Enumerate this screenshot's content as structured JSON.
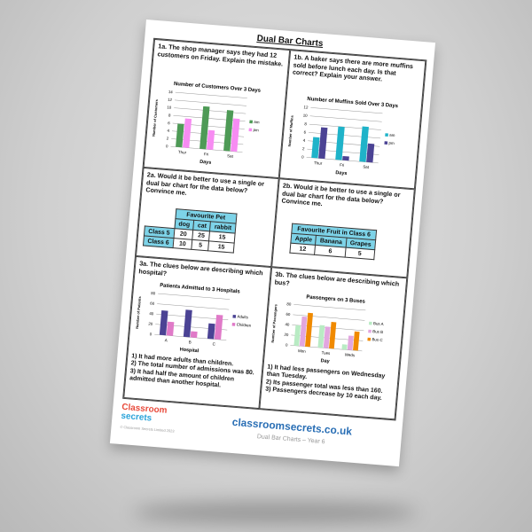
{
  "worksheet": {
    "title": "Dual Bar Charts",
    "q1a": "1a. The shop manager says they had 12 customers on Friday. Explain the mistake.",
    "q1b": "1b. A baker says there are more muffins sold before lunch each day. Is that correct? Explain your answer.",
    "q2a": "2a. Would it be better to use a single or dual bar chart for the data below? Convince me.",
    "q2b": "2b. Would it be better to use a single or dual bar chart for the data below? Convince me.",
    "q3a": "3a. The clues below are describing which hospital?",
    "q3b": "3b. The clues below are describing which bus?",
    "table_pet": {
      "header": "Favourite Pet",
      "cols": [
        "dog",
        "cat",
        "rabbit"
      ],
      "rows": [
        {
          "label": "Class 5",
          "values": [
            "20",
            "25",
            "15"
          ]
        },
        {
          "label": "Class 6",
          "values": [
            "10",
            "5",
            "15"
          ]
        }
      ]
    },
    "table_fruit": {
      "header": "Favourite Fruit in Class 6",
      "cols": [
        "Apple",
        "Banana",
        "Grapes"
      ],
      "values": [
        "12",
        "6",
        "5"
      ]
    },
    "clues3a": [
      "1) It had more adults than children.",
      "2) The total number of admissions was 80.",
      "3) It had half the amount of children admitted than another hospital."
    ],
    "clues3b": [
      "1) It had less passengers on Wednesday than Tuesday.",
      "2) Its passenger total was less than 160.",
      "3) Passengers decrease by 10 each day."
    ],
    "footer": {
      "logo_line1": "Classroom",
      "logo_line2": "secrets",
      "copyright": "© Classroom Secrets Limited 2023",
      "url": "classroomsecrets.co.uk",
      "subtitle": "Dual Bar Charts – Year 6"
    }
  },
  "chart_data": [
    {
      "type": "bar",
      "title": "Number of Customers Over 3 Days",
      "xlabel": "Days",
      "ylabel": "Number of Customers",
      "categories": [
        "Thur",
        "Fri",
        "Sat"
      ],
      "ylim": [
        0,
        14
      ],
      "yticks": [
        0,
        2,
        4,
        6,
        8,
        10,
        12,
        14
      ],
      "grid": true,
      "legend": "right",
      "series": [
        {
          "name": "am",
          "color": "#4e9a56",
          "values": [
            6,
            11,
            10.5
          ]
        },
        {
          "name": "pm",
          "color": "#f78cf2",
          "values": [
            7.5,
            5,
            8.5
          ]
        }
      ]
    },
    {
      "type": "bar",
      "title": "Number of Muffins Sold Over 3 Days",
      "xlabel": "Days",
      "ylabel": "Number of Muffins",
      "categories": [
        "Thur",
        "Fri",
        "Sat"
      ],
      "ylim": [
        0,
        12
      ],
      "yticks": [
        0,
        2,
        4,
        6,
        8,
        10,
        12
      ],
      "grid": true,
      "legend": "right",
      "series": [
        {
          "name": "am",
          "color": "#1fb3c9",
          "values": [
            5,
            8,
            8.5
          ]
        },
        {
          "name": "pm",
          "color": "#4b4394",
          "values": [
            7.5,
            1,
            4.5
          ]
        }
      ]
    },
    {
      "type": "bar",
      "title": "Patients Admitted to 3 Hospitals",
      "xlabel": "Hospital",
      "ylabel": "Number of Patients",
      "categories": [
        "A",
        "B",
        "C"
      ],
      "ylim": [
        0,
        80
      ],
      "yticks": [
        0,
        20,
        40,
        60,
        80
      ],
      "grid": true,
      "legend": "right",
      "series": [
        {
          "name": "Adults",
          "color": "#4b4394",
          "values": [
            48,
            53,
            30
          ]
        },
        {
          "name": "Children",
          "color": "#e07ac8",
          "values": [
            27,
            12,
            48
          ]
        }
      ]
    },
    {
      "type": "bar",
      "title": "Passengers on 3 Buses",
      "xlabel": "Day",
      "ylabel": "Number of Passengers",
      "categories": [
        "Mon",
        "Tues",
        "Weds"
      ],
      "ylim": [
        0,
        80
      ],
      "yticks": [
        0,
        20,
        40,
        60,
        80
      ],
      "grid": true,
      "legend": "right",
      "series": [
        {
          "name": "Bus A",
          "color": "#b9ebc4",
          "values": [
            40,
            44,
            10
          ]
        },
        {
          "name": "Bus B",
          "color": "#e2a6df",
          "values": [
            58,
            42,
            28
          ]
        },
        {
          "name": "Bus C",
          "color": "#f08a00",
          "values": [
            66,
            52,
            37
          ]
        }
      ]
    }
  ]
}
